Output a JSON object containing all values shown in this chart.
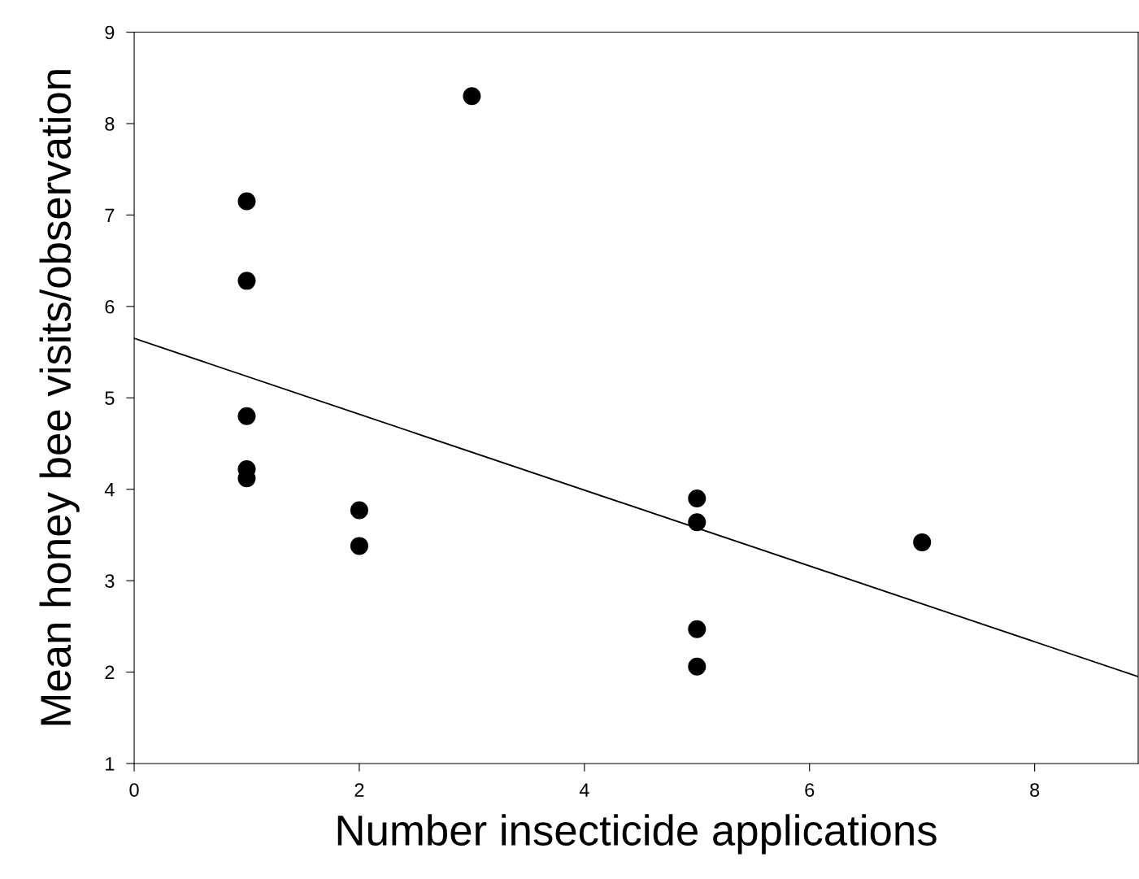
{
  "chart_data": {
    "type": "scatter",
    "xlabel": "Number insecticide applications",
    "ylabel": "Mean honey bee visits/observation",
    "xlim": [
      0,
      8.92
    ],
    "ylim": [
      1,
      9
    ],
    "xticks": [
      0,
      2,
      4,
      6,
      8
    ],
    "yticks": [
      1,
      2,
      3,
      4,
      5,
      6,
      7,
      8,
      9
    ],
    "grid": false,
    "marker": "circle",
    "series": [
      {
        "color": "#000000",
        "x": [
          1,
          1,
          1,
          1,
          1,
          2,
          2,
          3,
          5,
          5,
          5,
          5,
          7
        ],
        "values": [
          7.15,
          6.28,
          4.8,
          4.22,
          4.12,
          3.77,
          3.38,
          8.3,
          3.9,
          3.64,
          2.47,
          2.06,
          3.42
        ]
      },
      {
        "type": "line",
        "color": "#000000",
        "x": [
          0,
          8.92
        ],
        "values": [
          5.65,
          1.95
        ],
        "marker": "none",
        "line_style": "solid"
      }
    ]
  }
}
